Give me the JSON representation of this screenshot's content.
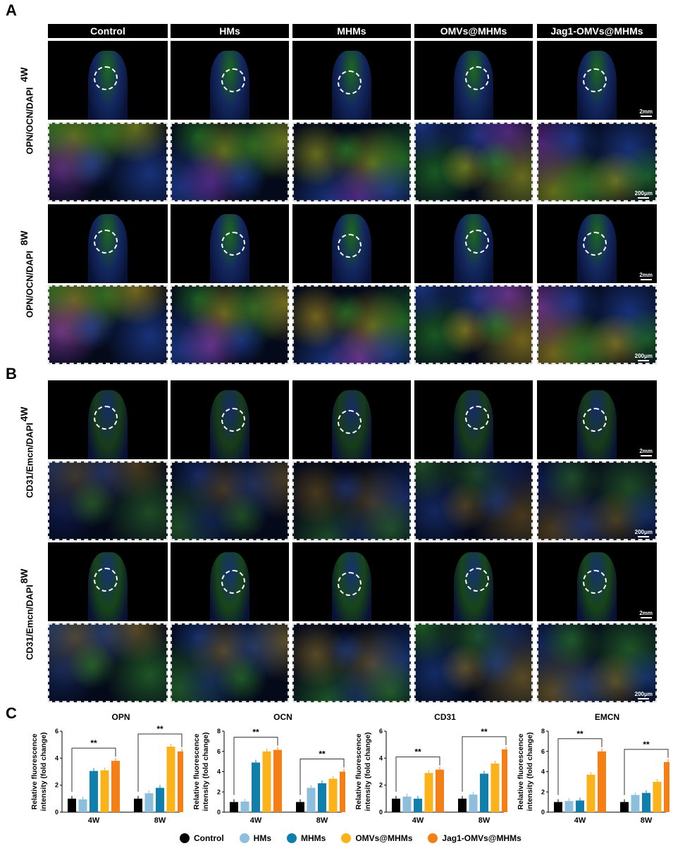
{
  "panel_labels": {
    "a": "A",
    "b": "B",
    "c": "C"
  },
  "columns": [
    "Control",
    "HMs",
    "MHMs",
    "OMVs@MHMs",
    "Jag1-OMVs@MHMs"
  ],
  "panel_a": {
    "stain": "OPN/OCN/DAPI",
    "rows": [
      "4W",
      "8W"
    ]
  },
  "panel_b": {
    "stain": "CD31/Emcn/DAPI",
    "rows": [
      "4W",
      "8W"
    ]
  },
  "scale_bars": {
    "whole": "2mm",
    "zoom": "200μm"
  },
  "groups": [
    {
      "name": "Control",
      "color": "#000000"
    },
    {
      "name": "HMs",
      "color": "#8dbfdc"
    },
    {
      "name": "MHMs",
      "color": "#0f7fae"
    },
    {
      "name": "OMVs@MHMs",
      "color": "#fbb21b"
    },
    {
      "name": "Jag1-OMVs@MHMs",
      "color": "#f57f17"
    }
  ],
  "chart_data": [
    {
      "type": "bar",
      "title": "OPN",
      "ylabel": "Relative fluorescence intensity (fold change)",
      "categories": [
        "4W",
        "8W"
      ],
      "ylim": [
        0,
        6
      ],
      "yticks": [
        0,
        2,
        4,
        6
      ],
      "significance": "**",
      "series": [
        {
          "name": "Control",
          "values": [
            1.0,
            1.0
          ]
        },
        {
          "name": "HMs",
          "values": [
            0.95,
            1.4
          ]
        },
        {
          "name": "MHMs",
          "values": [
            3.05,
            1.8
          ]
        },
        {
          "name": "OMVs@MHMs",
          "values": [
            3.1,
            4.85
          ]
        },
        {
          "name": "Jag1-OMVs@MHMs",
          "values": [
            3.8,
            4.5
          ]
        }
      ]
    },
    {
      "type": "bar",
      "title": "OCN",
      "ylabel": "Relative fluorescence intensity (fold change)",
      "categories": [
        "4W",
        "8W"
      ],
      "ylim": [
        0,
        8
      ],
      "yticks": [
        0,
        2,
        4,
        6,
        8
      ],
      "significance": "**",
      "series": [
        {
          "name": "Control",
          "values": [
            1.0,
            1.0
          ]
        },
        {
          "name": "HMs",
          "values": [
            1.05,
            2.4
          ]
        },
        {
          "name": "MHMs",
          "values": [
            4.9,
            2.85
          ]
        },
        {
          "name": "OMVs@MHMs",
          "values": [
            6.0,
            3.3
          ]
        },
        {
          "name": "Jag1-OMVs@MHMs",
          "values": [
            6.15,
            4.0
          ]
        }
      ]
    },
    {
      "type": "bar",
      "title": "CD31",
      "ylabel": "Relative fluorescence intensity (fold change)",
      "categories": [
        "4W",
        "8W"
      ],
      "ylim": [
        0,
        6
      ],
      "yticks": [
        0,
        2,
        4,
        6
      ],
      "significance": "**",
      "series": [
        {
          "name": "Control",
          "values": [
            1.0,
            1.0
          ]
        },
        {
          "name": "HMs",
          "values": [
            1.15,
            1.3
          ]
        },
        {
          "name": "MHMs",
          "values": [
            1.0,
            2.85
          ]
        },
        {
          "name": "OMVs@MHMs",
          "values": [
            2.9,
            3.6
          ]
        },
        {
          "name": "Jag1-OMVs@MHMs",
          "values": [
            3.15,
            4.65
          ]
        }
      ]
    },
    {
      "type": "bar",
      "title": "EMCN",
      "ylabel": "Relative fluorescence intensity (fold change)",
      "categories": [
        "4W",
        "8W"
      ],
      "ylim": [
        0,
        8
      ],
      "yticks": [
        0,
        2,
        4,
        6,
        8
      ],
      "significance": "**",
      "series": [
        {
          "name": "Control",
          "values": [
            1.0,
            1.0
          ]
        },
        {
          "name": "HMs",
          "values": [
            1.1,
            1.7
          ]
        },
        {
          "name": "MHMs",
          "values": [
            1.15,
            1.9
          ]
        },
        {
          "name": "OMVs@MHMs",
          "values": [
            3.7,
            3.0
          ]
        },
        {
          "name": "Jag1-OMVs@MHMs",
          "values": [
            6.0,
            4.95
          ]
        }
      ]
    }
  ]
}
